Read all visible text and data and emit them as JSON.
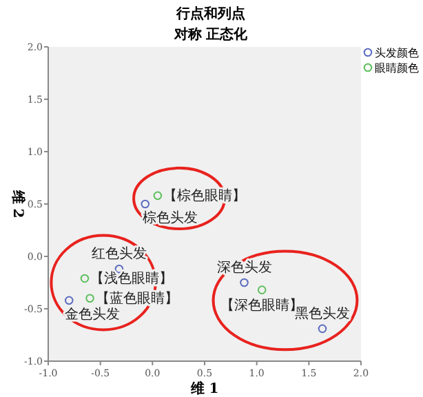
{
  "chart_data": {
    "type": "scatter",
    "title": "行点和列点",
    "subtitle": "对称 正态化",
    "xlabel": "维 1",
    "ylabel": "维 2",
    "marker": "circle",
    "legend": "top right",
    "grid": false,
    "xlim": [
      -1,
      2
    ],
    "xticks": [
      {
        "value": -1,
        "label": "-1.0"
      },
      {
        "value": -0.5,
        "label": "-0.5"
      },
      {
        "value": 0,
        "label": "0.0"
      },
      {
        "value": 0.5,
        "label": "0.5"
      },
      {
        "value": 1,
        "label": "1.0"
      },
      {
        "value": 1.5,
        "label": "1.5"
      },
      {
        "value": 2,
        "label": "2.0"
      }
    ],
    "ylim": [
      -1,
      2
    ],
    "yticks": [
      {
        "value": -1,
        "label": "-1.0"
      },
      {
        "value": -0.5,
        "label": "-0.5"
      },
      {
        "value": 0,
        "label": "0.0"
      },
      {
        "value": 0.5,
        "label": "0.5"
      },
      {
        "value": 1,
        "label": "1.0"
      },
      {
        "value": 1.5,
        "label": "1.5"
      },
      {
        "value": 2,
        "label": "2.0"
      }
    ],
    "series": [
      {
        "name": "头发颜色",
        "color": "#5b6bc0",
        "x": [
          -0.07,
          -0.32,
          -0.8,
          0.88,
          1.63
        ],
        "values": [
          0.5,
          -0.12,
          -0.42,
          -0.25,
          -0.69
        ]
      },
      {
        "name": "眼睛颜色",
        "color": "#5cbf5c",
        "x": [
          0.05,
          -0.65,
          -0.6,
          1.05
        ],
        "values": [
          0.58,
          -0.21,
          -0.4,
          -0.32
        ]
      }
    ],
    "annotations": [
      {
        "text": "棕色头发",
        "x": -0.07,
        "y": 0.5
      },
      {
        "text": "红色头发",
        "x": -0.32,
        "y": -0.12
      },
      {
        "text": "金色头发",
        "x": -0.8,
        "y": -0.42
      },
      {
        "text": "深色头发",
        "x": 0.88,
        "y": -0.25
      },
      {
        "text": "黑色头发",
        "x": 1.63,
        "y": -0.69
      },
      {
        "text": "【棕色眼睛】",
        "x": 0.05,
        "y": 0.58
      },
      {
        "text": "【浅色眼睛】",
        "x": -0.65,
        "y": -0.21
      },
      {
        "text": "【蓝色眼睛】",
        "x": -0.6,
        "y": -0.4
      },
      {
        "text": "【深色眼睛】",
        "x": 1.05,
        "y": -0.32
      }
    ]
  }
}
